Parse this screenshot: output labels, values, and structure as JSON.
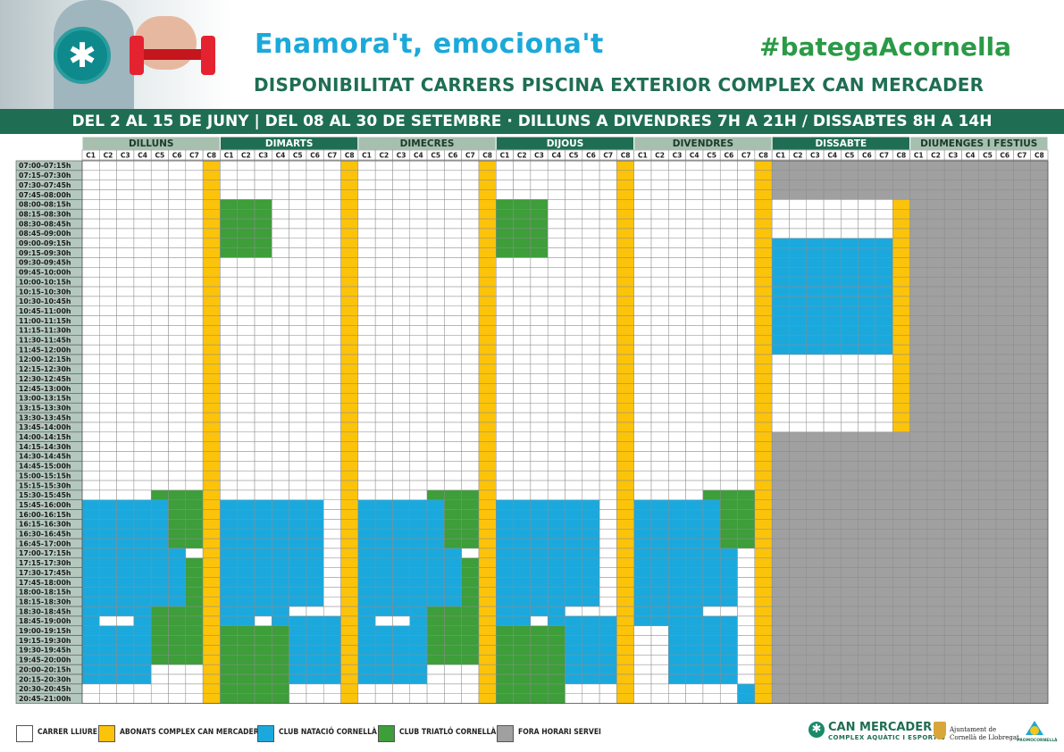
{
  "header": {
    "tagline": "Enamora't, emociona't",
    "hashtag": "#bategaAcornella",
    "subtitle": "DISPONIBILITAT CARRERS PISCINA EXTERIOR COMPLEX CAN MERCADER",
    "banner": "DEL 2 AL 15 DE JUNY | DEL 08 AL 30 DE SETEMBRE · DILLUNS A DIVENDRES 7H A 21H / DISSABTES 8H A 14H"
  },
  "colors": {
    "free": "#ffffff",
    "abonats": "#fcc30b",
    "natacio": "#1ba9dd",
    "triatlo": "#3d9e3a",
    "fora": "#a0a0a0",
    "day_dark": "#1f6e53",
    "day_light": "#a6bfaf",
    "grid": "#8c8c8c",
    "time_bg": "#b4c8bd"
  },
  "days": [
    {
      "name": "DILLUNS",
      "style": "light"
    },
    {
      "name": "DIMARTS",
      "style": "dark"
    },
    {
      "name": "DIMECRES",
      "style": "light"
    },
    {
      "name": "DIJOUS",
      "style": "dark"
    },
    {
      "name": "DIVENDRES",
      "style": "light"
    },
    {
      "name": "DISSABTE",
      "style": "dark"
    },
    {
      "name": "DIUMENGES I FESTIUS",
      "style": "light"
    }
  ],
  "lanes": [
    "C1",
    "C2",
    "C3",
    "C4",
    "C5",
    "C6",
    "C7",
    "C8"
  ],
  "times": [
    "07:00-07:15h",
    "07:15-07:30h",
    "07:30-07:45h",
    "07:45-08:00h",
    "08:00-08:15h",
    "08:15-08:30h",
    "08:30-08:45h",
    "08:45-09:00h",
    "09:00-09:15h",
    "09:15-09:30h",
    "09:30-09:45h",
    "09:45-10:00h",
    "10:00-10:15h",
    "10:15-10:30h",
    "10:30-10:45h",
    "10:45-11:00h",
    "11:00-11:15h",
    "11:15-11:30h",
    "11:30-11:45h",
    "11:45-12:00h",
    "12:00-12:15h",
    "12:15-12:30h",
    "12:30-12:45h",
    "12:45-13:00h",
    "13:00-13:15h",
    "13:15-13:30h",
    "13:30-13:45h",
    "13:45-14:00h",
    "14:00-14:15h",
    "14:15-14:30h",
    "14:30-14:45h",
    "14:45-15:00h",
    "15:00-15:15h",
    "15:15-15:30h",
    "15:30-15:45h",
    "15:45-16:00h",
    "16:00-16:15h",
    "16:15-16:30h",
    "16:30-16:45h",
    "16:45-17:00h",
    "17:00-17:15h",
    "17:15-17:30h",
    "17:30-17:45h",
    "17:45-18:00h",
    "18:00-18:15h",
    "18:15-18:30h",
    "18:30-18:45h",
    "18:45-19:00h",
    "19:00-19:15h",
    "19:15-19:30h",
    "19:30-19:45h",
    "19:45-20:00h",
    "20:00-20:15h",
    "20:15-20:30h",
    "20:30-20:45h",
    "20:45-21:00h"
  ],
  "schedule": {
    "DILLUNS": [
      "WWWWWWWY",
      "WWWWWWWY",
      "WWWWWWWY",
      "WWWWWWWY",
      "WWWWWWWY",
      "WWWWWWWY",
      "WWWWWWWY",
      "WWWWWWWY",
      "WWWWWWWY",
      "WWWWWWWY",
      "WWWWWWWY",
      "WWWWWWWY",
      "WWWWWWWY",
      "WWWWWWWY",
      "WWWWWWWY",
      "WWWWWWWY",
      "WWWWWWWY",
      "WWWWWWWY",
      "WWWWWWWY",
      "WWWWWWWY",
      "WWWWWWWY",
      "WWWWWWWY",
      "WWWWWWWY",
      "WWWWWWWY",
      "WWWWWWWY",
      "WWWWWWWY",
      "WWWWWWWY",
      "WWWWWWWY",
      "WWWWWWWY",
      "WWWWWWWY",
      "WWWWWWWY",
      "WWWWWWWY",
      "WWWWWWWY",
      "WWWWWWWY",
      "WWWWGGGY",
      "BBBBBGGY",
      "BBBBBGGY",
      "BBBBBGGY",
      "BBBBBGGY",
      "BBBBBGGY",
      "BBBBBBWY",
      "BBBBBBGY",
      "BBBBBBGY",
      "BBBBBBGY",
      "BBBBBBGY",
      "BBBBBBGY",
      "BBBBGGGY",
      "BWWBGGGY",
      "BBBBGGGY",
      "BBBBGGGY",
      "BBBBGGGY",
      "BBBBGGGY",
      "BBBBWWWY",
      "BBBBWWWY",
      "WWWWWWWY",
      "WWWWWWWY"
    ],
    "DIMARTS": [
      "WWWWWWWY",
      "WWWWWWWY",
      "WWWWWWWY",
      "WWWWWWWY",
      "GGGWWWWY",
      "GGGWWWWY",
      "GGGWWWWY",
      "GGGWWWWY",
      "GGGWWWWY",
      "GGGWWWWY",
      "WWWWWWWY",
      "WWWWWWWY",
      "WWWWWWWY",
      "WWWWWWWY",
      "WWWWWWWY",
      "WWWWWWWY",
      "WWWWWWWY",
      "WWWWWWWY",
      "WWWWWWWY",
      "WWWWWWWY",
      "WWWWWWWY",
      "WWWWWWWY",
      "WWWWWWWY",
      "WWWWWWWY",
      "WWWWWWWY",
      "WWWWWWWY",
      "WWWWWWWY",
      "WWWWWWWY",
      "WWWWWWWY",
      "WWWWWWWY",
      "WWWWWWWY",
      "WWWWWWWY",
      "WWWWWWWY",
      "WWWWWWWY",
      "WWWWWWWY",
      "BBBBBBWY",
      "BBBBBBWY",
      "BBBBBBWY",
      "BBBBBBWY",
      "BBBBBBWY",
      "BBBBBBWY",
      "BBBBBBWY",
      "BBBBBBWY",
      "BBBBBBWY",
      "BBBBBBWY",
      "BBBBBBWY",
      "BBBBWWWY",
      "BBWBBBBY",
      "GGGGBBBY",
      "GGGGBBBY",
      "GGGGBBBY",
      "GGGGBBBY",
      "GGGGBBBY",
      "GGGGBBBY",
      "GGGGWWWY",
      "GGGGWWWY"
    ],
    "DIMECRES": [
      "WWWWWWWY",
      "WWWWWWWY",
      "WWWWWWWY",
      "WWWWWWWY",
      "WWWWWWWY",
      "WWWWWWWY",
      "WWWWWWWY",
      "WWWWWWWY",
      "WWWWWWWY",
      "WWWWWWWY",
      "WWWWWWWY",
      "WWWWWWWY",
      "WWWWWWWY",
      "WWWWWWWY",
      "WWWWWWWY",
      "WWWWWWWY",
      "WWWWWWWY",
      "WWWWWWWY",
      "WWWWWWWY",
      "WWWWWWWY",
      "WWWWWWWY",
      "WWWWWWWY",
      "WWWWWWWY",
      "WWWWWWWY",
      "WWWWWWWY",
      "WWWWWWWY",
      "WWWWWWWY",
      "WWWWWWWY",
      "WWWWWWWY",
      "WWWWWWWY",
      "WWWWWWWY",
      "WWWWWWWY",
      "WWWWWWWY",
      "WWWWWWWY",
      "WWWWGGGY",
      "BBBBBGGY",
      "BBBBBGGY",
      "BBBBBGGY",
      "BBBBBGGY",
      "BBBBBGGY",
      "BBBBBBWY",
      "BBBBBBGY",
      "BBBBBBGY",
      "BBBBBBGY",
      "BBBBBBGY",
      "BBBBBBGY",
      "BBBBGGGY",
      "BWWBGGGY",
      "BBBBGGGY",
      "BBBBGGGY",
      "BBBBGGGY",
      "BBBBGGGY",
      "BBBBWWWY",
      "BBBBWWWY",
      "WWWWWWWY",
      "WWWWWWWY"
    ],
    "DIJOUS": [
      "WWWWWWWY",
      "WWWWWWWY",
      "WWWWWWWY",
      "WWWWWWWY",
      "GGGWWWWY",
      "GGGWWWWY",
      "GGGWWWWY",
      "GGGWWWWY",
      "GGGWWWWY",
      "GGGWWWWY",
      "WWWWWWWY",
      "WWWWWWWY",
      "WWWWWWWY",
      "WWWWWWWY",
      "WWWWWWWY",
      "WWWWWWWY",
      "WWWWWWWY",
      "WWWWWWWY",
      "WWWWWWWY",
      "WWWWWWWY",
      "WWWWWWWY",
      "WWWWWWWY",
      "WWWWWWWY",
      "WWWWWWWY",
      "WWWWWWWY",
      "WWWWWWWY",
      "WWWWWWWY",
      "WWWWWWWY",
      "WWWWWWWY",
      "WWWWWWWY",
      "WWWWWWWY",
      "WWWWWWWY",
      "WWWWWWWY",
      "WWWWWWWY",
      "WWWWWWWY",
      "BBBBBBWY",
      "BBBBBBWY",
      "BBBBBBWY",
      "BBBBBBWY",
      "BBBBBBWY",
      "BBBBBBWY",
      "BBBBBBWY",
      "BBBBBBWY",
      "BBBBBBWY",
      "BBBBBBWY",
      "BBBBBBWY",
      "BBBBWWWY",
      "BBWBBBBY",
      "GGGGBBBY",
      "GGGGBBBY",
      "GGGGBBBY",
      "GGGGBBBY",
      "GGGGBBBY",
      "GGGGBBBY",
      "GGGGWWWY",
      "GGGGWWWY"
    ],
    "DIVENDRES": [
      "WWWWWWWY",
      "WWWWWWWY",
      "WWWWWWWY",
      "WWWWWWWY",
      "WWWWWWWY",
      "WWWWWWWY",
      "WWWWWWWY",
      "WWWWWWWY",
      "WWWWWWWY",
      "WWWWWWWY",
      "WWWWWWWY",
      "WWWWWWWY",
      "WWWWWWWY",
      "WWWWWWWY",
      "WWWWWWWY",
      "WWWWWWWY",
      "WWWWWWWY",
      "WWWWWWWY",
      "WWWWWWWY",
      "WWWWWWWY",
      "WWWWWWWY",
      "WWWWWWWY",
      "WWWWWWWY",
      "WWWWWWWY",
      "WWWWWWWY",
      "WWWWWWWY",
      "WWWWWWWY",
      "WWWWWWWY",
      "WWWWWWWY",
      "WWWWWWWY",
      "WWWWWWWY",
      "WWWWWWWY",
      "WWWWWWWY",
      "WWWWWWWY",
      "WWWWGGGY",
      "BBBBBGGY",
      "BBBBBGGY",
      "BBBBBGGY",
      "BBBBBGGY",
      "BBBBBGGY",
      "BBBBBBWY",
      "BBBBBBWY",
      "BBBBBBWY",
      "BBBBBBWY",
      "BBBBBBWY",
      "BBBBBBWY",
      "BBBBWWWY",
      "BBBBBBWY",
      "WWBBBBWY",
      "WWBBBBWY",
      "WWBBBBWY",
      "WWBBBBWY",
      "WWBBBBWY",
      "WWBBBBWY",
      "WWWWWWBY",
      "WWWWWWBY"
    ],
    "DISSABTE": [
      "XXXXXXXX",
      "XXXXXXXX",
      "XXXXXXXX",
      "XXXXXXXX",
      "WWWWWWWY",
      "WWWWWWWY",
      "WWWWWWWY",
      "WWWWWWWY",
      "BBBBBBBY",
      "BBBBBBBY",
      "BBBBBBBY",
      "BBBBBBBY",
      "BBBBBBBY",
      "BBBBBBBY",
      "BBBBBBBY",
      "BBBBBBBY",
      "BBBBBBBY",
      "BBBBBBBY",
      "BBBBBBBY",
      "BBBBBBBY",
      "WWWWWWWY",
      "WWWWWWWY",
      "WWWWWWWY",
      "WWWWWWWY",
      "WWWWWWWY",
      "WWWWWWWY",
      "WWWWWWWY",
      "WWWWWWWY",
      "XXXXXXXX",
      "XXXXXXXX",
      "XXXXXXXX",
      "XXXXXXXX",
      "XXXXXXXX",
      "XXXXXXXX",
      "XXXXXXXX",
      "XXXXXXXX",
      "XXXXXXXX",
      "XXXXXXXX",
      "XXXXXXXX",
      "XXXXXXXX",
      "XXXXXXXX",
      "XXXXXXXX",
      "XXXXXXXX",
      "XXXXXXXX",
      "XXXXXXXX",
      "XXXXXXXX",
      "XXXXXXXX",
      "XXXXXXXX",
      "XXXXXXXX",
      "XXXXXXXX",
      "XXXXXXXX",
      "XXXXXXXX",
      "XXXXXXXX",
      "XXXXXXXX",
      "XXXXXXXX",
      "XXXXXXXX"
    ],
    "DIUMENGES I FESTIUS": [
      "XXXXXXXX",
      "XXXXXXXX",
      "XXXXXXXX",
      "XXXXXXXX",
      "XXXXXXXX",
      "XXXXXXXX",
      "XXXXXXXX",
      "XXXXXXXX",
      "XXXXXXXX",
      "XXXXXXXX",
      "XXXXXXXX",
      "XXXXXXXX",
      "XXXXXXXX",
      "XXXXXXXX",
      "XXXXXXXX",
      "XXXXXXXX",
      "XXXXXXXX",
      "XXXXXXXX",
      "XXXXXXXX",
      "XXXXXXXX",
      "XXXXXXXX",
      "XXXXXXXX",
      "XXXXXXXX",
      "XXXXXXXX",
      "XXXXXXXX",
      "XXXXXXXX",
      "XXXXXXXX",
      "XXXXXXXX",
      "XXXXXXXX",
      "XXXXXXXX",
      "XXXXXXXX",
      "XXXXXXXX",
      "XXXXXXXX",
      "XXXXXXXX",
      "XXXXXXXX",
      "XXXXXXXX",
      "XXXXXXXX",
      "XXXXXXXX",
      "XXXXXXXX",
      "XXXXXXXX",
      "XXXXXXXX",
      "XXXXXXXX",
      "XXXXXXXX",
      "XXXXXXXX",
      "XXXXXXXX",
      "XXXXXXXX",
      "XXXXXXXX",
      "XXXXXXXX",
      "XXXXXXXX",
      "XXXXXXXX",
      "XXXXXXXX",
      "XXXXXXXX",
      "XXXXXXXX",
      "XXXXXXXX",
      "XXXXXXXX",
      "XXXXXXXX"
    ]
  },
  "legend": [
    {
      "code": "W",
      "label": "CARRER LLIURE",
      "color": "#ffffff"
    },
    {
      "code": "Y",
      "label": "ABONATS COMPLEX CAN MERCADER",
      "color": "#fcc30b"
    },
    {
      "code": "B",
      "label": "CLUB NATACIÓ CORNELLÀ",
      "color": "#1ba9dd"
    },
    {
      "code": "G",
      "label": "CLUB TRIATLÓ CORNELLÀ",
      "color": "#3d9e3a"
    },
    {
      "code": "X",
      "label": "FORA HORARI SERVEI",
      "color": "#a0a0a0"
    }
  ],
  "footer": {
    "brand_name": "CAN MERCADER",
    "brand_sub": "COMPLEX AQUÀTIC I ESPORTIU",
    "ajuntament_1": "Ajuntament de",
    "ajuntament_2": "Cornellà de Llobregat",
    "promo": "PROMOCORNELLÀ"
  },
  "icons": {
    "logo": "asterisk-logo-icon",
    "hero": "dumbbell-photo",
    "brand": "can-mercader-logo-icon",
    "ajuntament": "coat-of-arms-icon",
    "promo": "promocornella-logo-icon"
  }
}
